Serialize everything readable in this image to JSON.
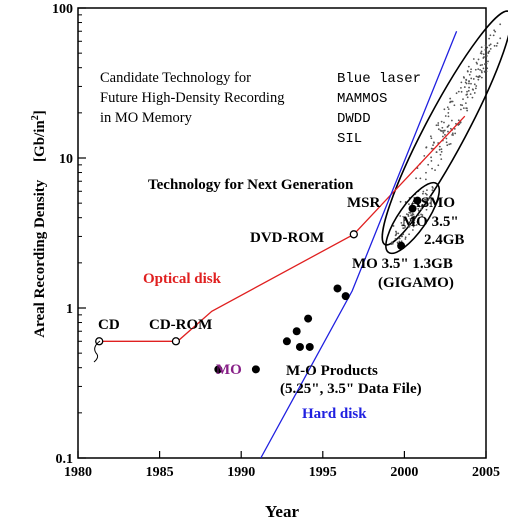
{
  "chart_data": {
    "type": "scatter",
    "xlabel": "Year",
    "ylabel": "Areal Recording Density",
    "ylabel_unit_base": "[Gb/in",
    "ylabel_unit_exp": "2",
    "ylabel_unit_end": "]",
    "xlim": [
      1980,
      2005
    ],
    "ylim": [
      0.1,
      100
    ],
    "yscale": "log",
    "x_ticks": [
      "1980",
      "1985",
      "1990",
      "1995",
      "2000",
      "2005"
    ],
    "y_ticks": [
      "0.1",
      "1",
      "10",
      "100"
    ],
    "grid": false,
    "series": [
      {
        "name": "Optical disk",
        "color": "#e02020",
        "style": "line",
        "points": [
          [
            1981.2,
            0.6
          ],
          [
            1986.1,
            0.6
          ],
          [
            1988.2,
            0.95
          ],
          [
            1996.9,
            3.1
          ],
          [
            2003.7,
            19
          ]
        ]
      },
      {
        "name": "Hard disk",
        "color": "#2020e0",
        "style": "line",
        "points": [
          [
            1991.2,
            0.1
          ],
          [
            1996.8,
            1.3
          ],
          [
            2003.2,
            70
          ]
        ]
      },
      {
        "name": "CD",
        "style": "open-marker",
        "points": [
          [
            1981.3,
            0.6
          ]
        ]
      },
      {
        "name": "CD-ROM",
        "style": "open-marker",
        "points": [
          [
            1986.0,
            0.6
          ]
        ]
      },
      {
        "name": "DVD-ROM",
        "style": "open-marker",
        "points": [
          [
            1996.9,
            3.1
          ]
        ]
      },
      {
        "name": "MO",
        "style": "filled-marker",
        "points": [
          [
            1988.6,
            0.39
          ],
          [
            1990.9,
            0.39
          ]
        ]
      },
      {
        "name": "M-O Products",
        "style": "filled-marker",
        "points": [
          [
            1992.8,
            0.6
          ],
          [
            1993.4,
            0.7
          ],
          [
            1993.6,
            0.55
          ],
          [
            1994.1,
            0.85
          ],
          [
            1994.2,
            0.55
          ],
          [
            1995.9,
            1.35
          ],
          [
            1996.4,
            1.2
          ],
          [
            2000.5,
            4.6
          ],
          [
            2000.8,
            5.2
          ],
          [
            1999.8,
            2.6
          ]
        ]
      }
    ],
    "regions": [
      {
        "name": "Blue laser / MAMMOS region",
        "color": "#555555",
        "cx": 2002.6,
        "cy_log10": 1.2,
        "angle_deg": -62,
        "rx_log": 0.88,
        "ry_years": 1.25
      },
      {
        "name": "Next generation region",
        "color": "#555555",
        "cx": 2000.5,
        "cy_log10": 0.6,
        "angle_deg": -55,
        "rx_log": 0.28,
        "ry_years": 0.85
      }
    ],
    "annotations": {
      "candidate_title": [
        "Candidate Technology for",
        "Future High-Density Recording",
        "in MO Memory"
      ],
      "candidate_items": [
        "Blue laser",
        "MAMMOS",
        "DWDD",
        "SIL"
      ],
      "next_gen": "Technology for Next Generation",
      "msr": "MSR",
      "asmo": "ASMO",
      "mo35_24": [
        "MO 3.5\"",
        "2.4GB"
      ],
      "mo35_13": [
        "MO 3.5\" 1.3GB",
        "(GIGAMO)"
      ],
      "dvd_rom": "DVD-ROM",
      "optical_disk": "Optical disk",
      "cd": "CD",
      "cd_rom": "CD-ROM",
      "mo": "MO",
      "mo_products": [
        "M-O Products",
        "(5.25\", 3.5\" Data File)"
      ],
      "hard_disk": "Hard disk"
    }
  },
  "colors": {
    "optical": "#e02020",
    "hard": "#2020e0",
    "mo_label": "#882088",
    "axis": "#000000"
  }
}
